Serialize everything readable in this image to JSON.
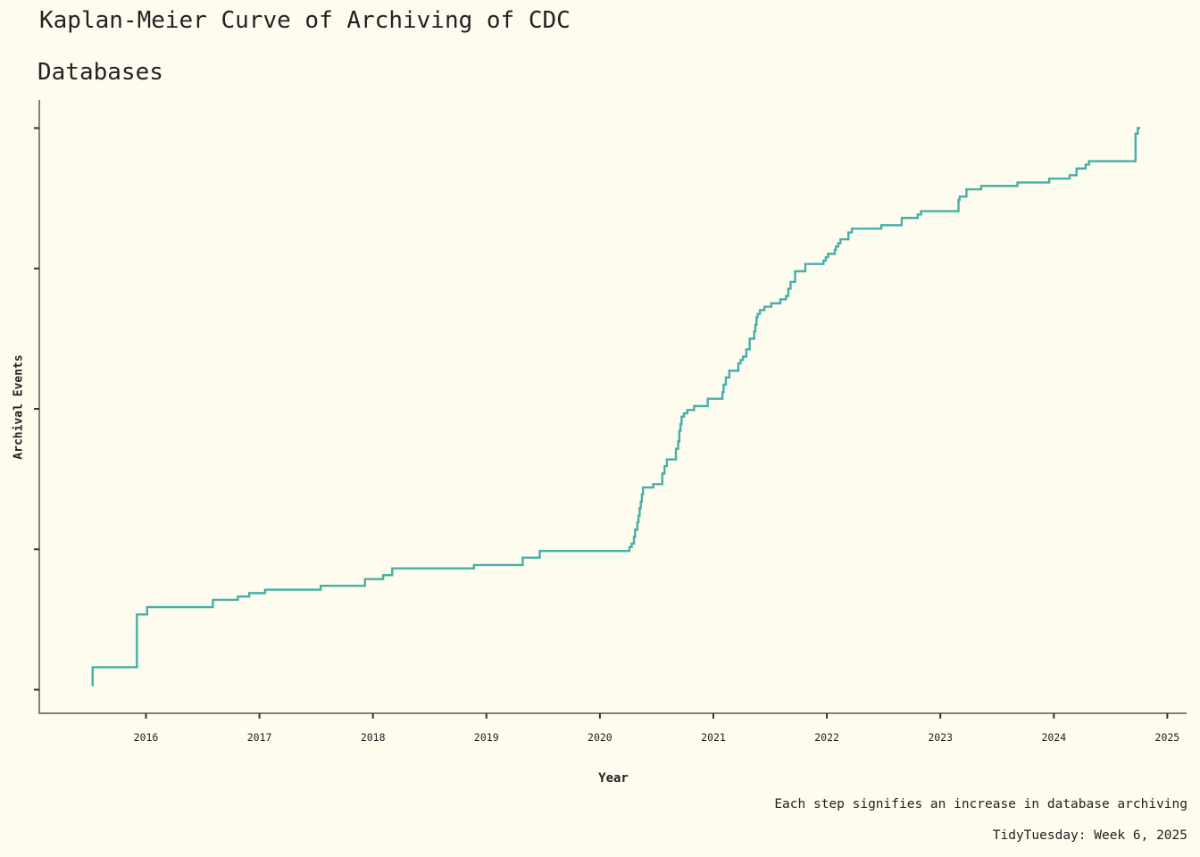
{
  "title_lines": [
    "Kaplan-Meier Curve of Archiving of CDC",
    "Databases"
  ],
  "caption_lines": [
    "Each step signifies an increase in database archiving",
    "TidyTuesday: Week 6, 2025"
  ],
  "colors": {
    "background": "#fefbef",
    "line": "#45b0a6",
    "axis": "#808080",
    "text": "#222222"
  },
  "chart_data": {
    "type": "line",
    "step": true,
    "title": "Kaplan-Meier Curve of Archiving of CDC Databases",
    "xlabel": "Year",
    "ylabel": "Archival Events",
    "x_ticks": [
      2016,
      2017,
      2018,
      2019,
      2020,
      2021,
      2022,
      2023,
      2024,
      2025
    ],
    "y_ticks": [
      0,
      0.25,
      0.5,
      0.75,
      1.0
    ],
    "y_tick_labels_shown": false,
    "xlim": [
      2015.06,
      2025.17
    ],
    "ylim": [
      -0.042,
      1.05
    ],
    "grid": false,
    "series": [
      {
        "x": [
          2015.53,
          2015.53,
          2015.92,
          2016.01,
          2016.59,
          2016.81,
          2016.91,
          2017.05,
          2017.54,
          2017.93,
          2018.09,
          2018.17,
          2018.89,
          2019.32,
          2019.47,
          2020.26,
          2020.28,
          2020.3,
          2020.31,
          2020.33,
          2020.34,
          2020.35,
          2020.36,
          2020.37,
          2020.38,
          2020.47,
          2020.55,
          2020.57,
          2020.59,
          2020.67,
          2020.69,
          2020.7,
          2020.71,
          2020.72,
          2020.74,
          2020.77,
          2020.83,
          2020.95,
          2021.08,
          2021.09,
          2021.11,
          2021.14,
          2021.22,
          2021.24,
          2021.26,
          2021.29,
          2021.32,
          2021.36,
          2021.37,
          2021.38,
          2021.39,
          2021.41,
          2021.45,
          2021.51,
          2021.59,
          2021.64,
          2021.66,
          2021.68,
          2021.72,
          2021.81,
          2021.97,
          2021.99,
          2022.01,
          2022.07,
          2022.08,
          2022.1,
          2022.12,
          2022.19,
          2022.22,
          2022.48,
          2022.66,
          2022.8,
          2022.83,
          2023.16,
          2023.17,
          2023.23,
          2023.36,
          2023.68,
          2023.96,
          2024.14,
          2024.2,
          2024.28,
          2024.31,
          2024.72,
          2024.74
        ],
        "y": [
          0.006,
          0.04,
          0.134,
          0.147,
          0.16,
          0.166,
          0.172,
          0.178,
          0.185,
          0.197,
          0.204,
          0.216,
          0.222,
          0.235,
          0.247,
          0.254,
          0.26,
          0.272,
          0.285,
          0.298,
          0.31,
          0.323,
          0.335,
          0.348,
          0.36,
          0.366,
          0.385,
          0.398,
          0.41,
          0.429,
          0.442,
          0.461,
          0.473,
          0.486,
          0.492,
          0.498,
          0.505,
          0.518,
          0.53,
          0.543,
          0.556,
          0.568,
          0.581,
          0.587,
          0.593,
          0.606,
          0.625,
          0.638,
          0.65,
          0.663,
          0.669,
          0.676,
          0.682,
          0.688,
          0.695,
          0.701,
          0.714,
          0.726,
          0.745,
          0.758,
          0.764,
          0.77,
          0.776,
          0.783,
          0.789,
          0.795,
          0.802,
          0.814,
          0.821,
          0.827,
          0.84,
          0.846,
          0.852,
          0.872,
          0.878,
          0.891,
          0.897,
          0.903,
          0.91,
          0.916,
          0.928,
          0.935,
          0.941,
          0.99,
          1.0
        ]
      }
    ]
  }
}
